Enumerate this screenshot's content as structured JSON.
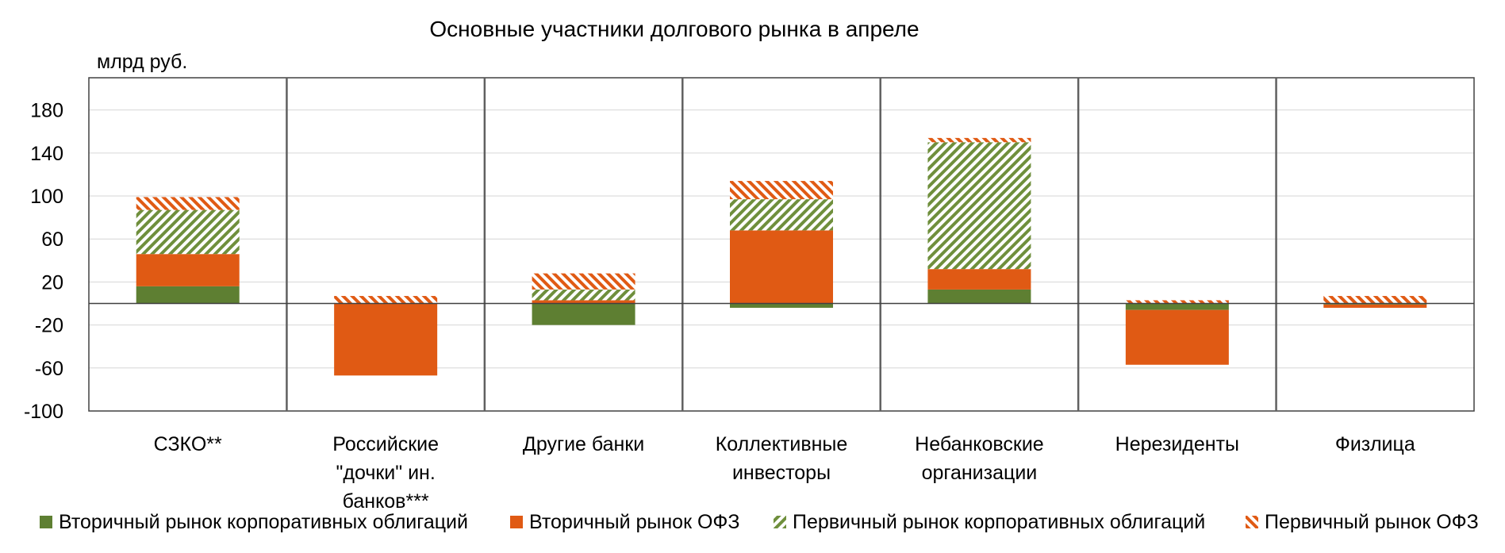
{
  "chart_data": {
    "type": "bar",
    "stacked": true,
    "title": "Основные участники долгового рынка в апреле",
    "unit_label": "млрд руб.",
    "xlabel": "",
    "ylabel": "",
    "ylim": [
      -100,
      210
    ],
    "yticks": [
      180,
      140,
      100,
      60,
      20,
      -20,
      -60,
      -100
    ],
    "ytick_labels": [
      "180",
      "140",
      "100",
      "60",
      "20",
      "-20",
      "-60",
      "-100"
    ],
    "grid": true,
    "legend_position": "bottom",
    "categories": [
      [
        "СЗКО**"
      ],
      [
        "Российские",
        "\"дочки\" ин.",
        "банков***"
      ],
      [
        "Другие банки"
      ],
      [
        "Коллективные",
        "инвесторы"
      ],
      [
        "Небанковские",
        "организации"
      ],
      [
        "Нерезиденты"
      ],
      [
        "Физлица"
      ]
    ],
    "series": [
      {
        "name": "Вторичный рынок корпоративных облигаций",
        "color": "#5e7f32",
        "pattern": "solid",
        "values": [
          16,
          0,
          -20,
          -4,
          13,
          -6,
          -1
        ]
      },
      {
        "name": "Вторичный рынок ОФЗ",
        "color": "#e05a14",
        "pattern": "solid",
        "values": [
          30,
          -67,
          3,
          68,
          19,
          -51,
          -3
        ]
      },
      {
        "name": "Первичный рынок корпоративных облигаций",
        "color": "#6f8f3c",
        "pattern": "hatch",
        "values": [
          41,
          0,
          10,
          29,
          118,
          0,
          0
        ]
      },
      {
        "name": "Первичный рынок ОФЗ",
        "color": "#e05a14",
        "pattern": "hatch",
        "values": [
          12,
          7,
          15,
          17,
          4,
          3,
          7
        ]
      }
    ]
  }
}
